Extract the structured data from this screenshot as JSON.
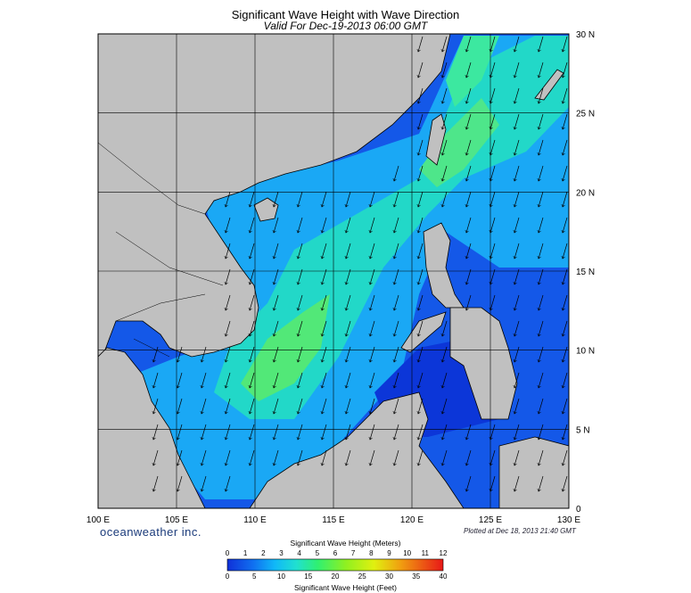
{
  "header": {
    "title": "Significant Wave Height with Wave Direction",
    "subtitle": "Valid For Dec-19-2013 06:00 GMT"
  },
  "map": {
    "lon_labels": [
      "100 E",
      "105 E",
      "110 E",
      "115 E",
      "120 E",
      "125 E",
      "130 E"
    ],
    "lat_labels": [
      "30 N",
      "25 N",
      "20 N",
      "15 N",
      "10 N",
      "5 N",
      "0"
    ],
    "lon_range": [
      100,
      130
    ],
    "lat_range": [
      0,
      30
    ],
    "land_color": "#c0c0c0",
    "grid": true,
    "arrow_direction": "southwest"
  },
  "footer": {
    "brand": "oceanweather inc.",
    "plotted": "Plotted at Dec 18, 2013 21:40 GMT"
  },
  "legend": {
    "meters_title": "Significant Wave Height (Meters)",
    "meters_ticks": [
      "0",
      "1",
      "2",
      "3",
      "4",
      "5",
      "6",
      "7",
      "8",
      "9",
      "10",
      "11",
      "12"
    ],
    "feet_title": "Significant Wave Height (Feet)",
    "feet_ticks": [
      "0",
      "5",
      "10",
      "15",
      "20",
      "25",
      "30",
      "35",
      "40"
    ],
    "colors": [
      "#1030d8",
      "#1060f0",
      "#10a0f8",
      "#18d0f0",
      "#20e8b0",
      "#30f060",
      "#80f020",
      "#c8f010",
      "#f0e010",
      "#f0b010",
      "#f08018",
      "#f04818",
      "#e81818"
    ]
  }
}
